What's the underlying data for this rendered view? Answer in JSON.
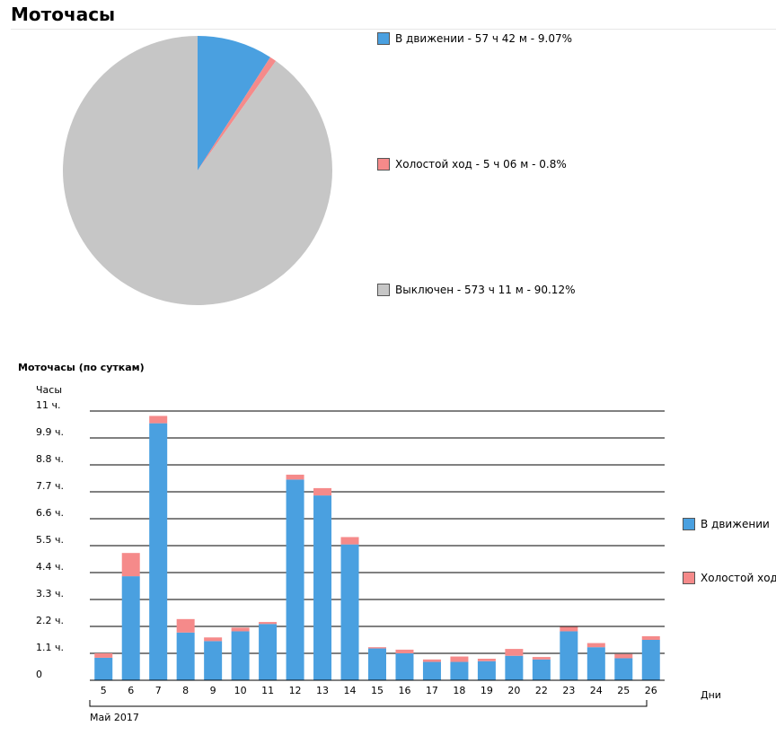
{
  "page": {
    "title": "Моточасы"
  },
  "colors": {
    "moving": "#4aa0e0",
    "idle": "#f58a8a",
    "off": "#c6c6c6"
  },
  "chart_data": [
    {
      "type": "pie",
      "title": "",
      "slices": [
        {
          "label": "В движении - 57 ч 42 м - 9.07%",
          "value": 9.07,
          "color": "#4aa0e0"
        },
        {
          "label": "Холостой ход - 5 ч 06 м - 0.8%",
          "value": 0.8,
          "color": "#f58a8a"
        },
        {
          "label": "Выключен - 573 ч 11 м - 90.12%",
          "value": 90.12,
          "color": "#c6c6c6"
        }
      ]
    },
    {
      "type": "bar",
      "stacked": true,
      "title": "Моточасы (по суткам)",
      "ylabel": "Часы",
      "xlabel": "Дни",
      "period_label": "Май 2017",
      "ylim": [
        0,
        11
      ],
      "y_ticks": [
        0,
        1.1,
        2.2,
        3.3,
        4.4,
        5.5,
        6.6,
        7.7,
        8.8,
        9.9,
        11
      ],
      "y_tick_labels": [
        "0",
        "1.1 ч.",
        "2.2 ч.",
        "3.3 ч.",
        "4.4 ч.",
        "5.5 ч.",
        "6.6 ч.",
        "7.7 ч.",
        "8.8 ч.",
        "9.9 ч.",
        "11 ч."
      ],
      "grid": true,
      "legend_position": "right",
      "categories": [
        "5",
        "6",
        "7",
        "8",
        "9",
        "10",
        "11",
        "12",
        "13",
        "14",
        "15",
        "16",
        "17",
        "18",
        "19",
        "20",
        "22",
        "23",
        "24",
        "25",
        "26"
      ],
      "series": [
        {
          "name": "В движении",
          "color": "#4aa0e0",
          "values": [
            0.92,
            4.25,
            10.5,
            1.95,
            1.6,
            2.0,
            2.3,
            8.2,
            7.55,
            5.55,
            1.3,
            1.1,
            0.75,
            0.75,
            0.78,
            1.0,
            0.85,
            2.0,
            1.35,
            0.9,
            1.65
          ]
        },
        {
          "name": "Холостой ход",
          "color": "#f58a8a",
          "values": [
            0.18,
            0.95,
            0.3,
            0.55,
            0.15,
            0.15,
            0.08,
            0.2,
            0.3,
            0.3,
            0.05,
            0.15,
            0.1,
            0.22,
            0.1,
            0.28,
            0.1,
            0.18,
            0.17,
            0.17,
            0.15
          ]
        }
      ]
    }
  ]
}
